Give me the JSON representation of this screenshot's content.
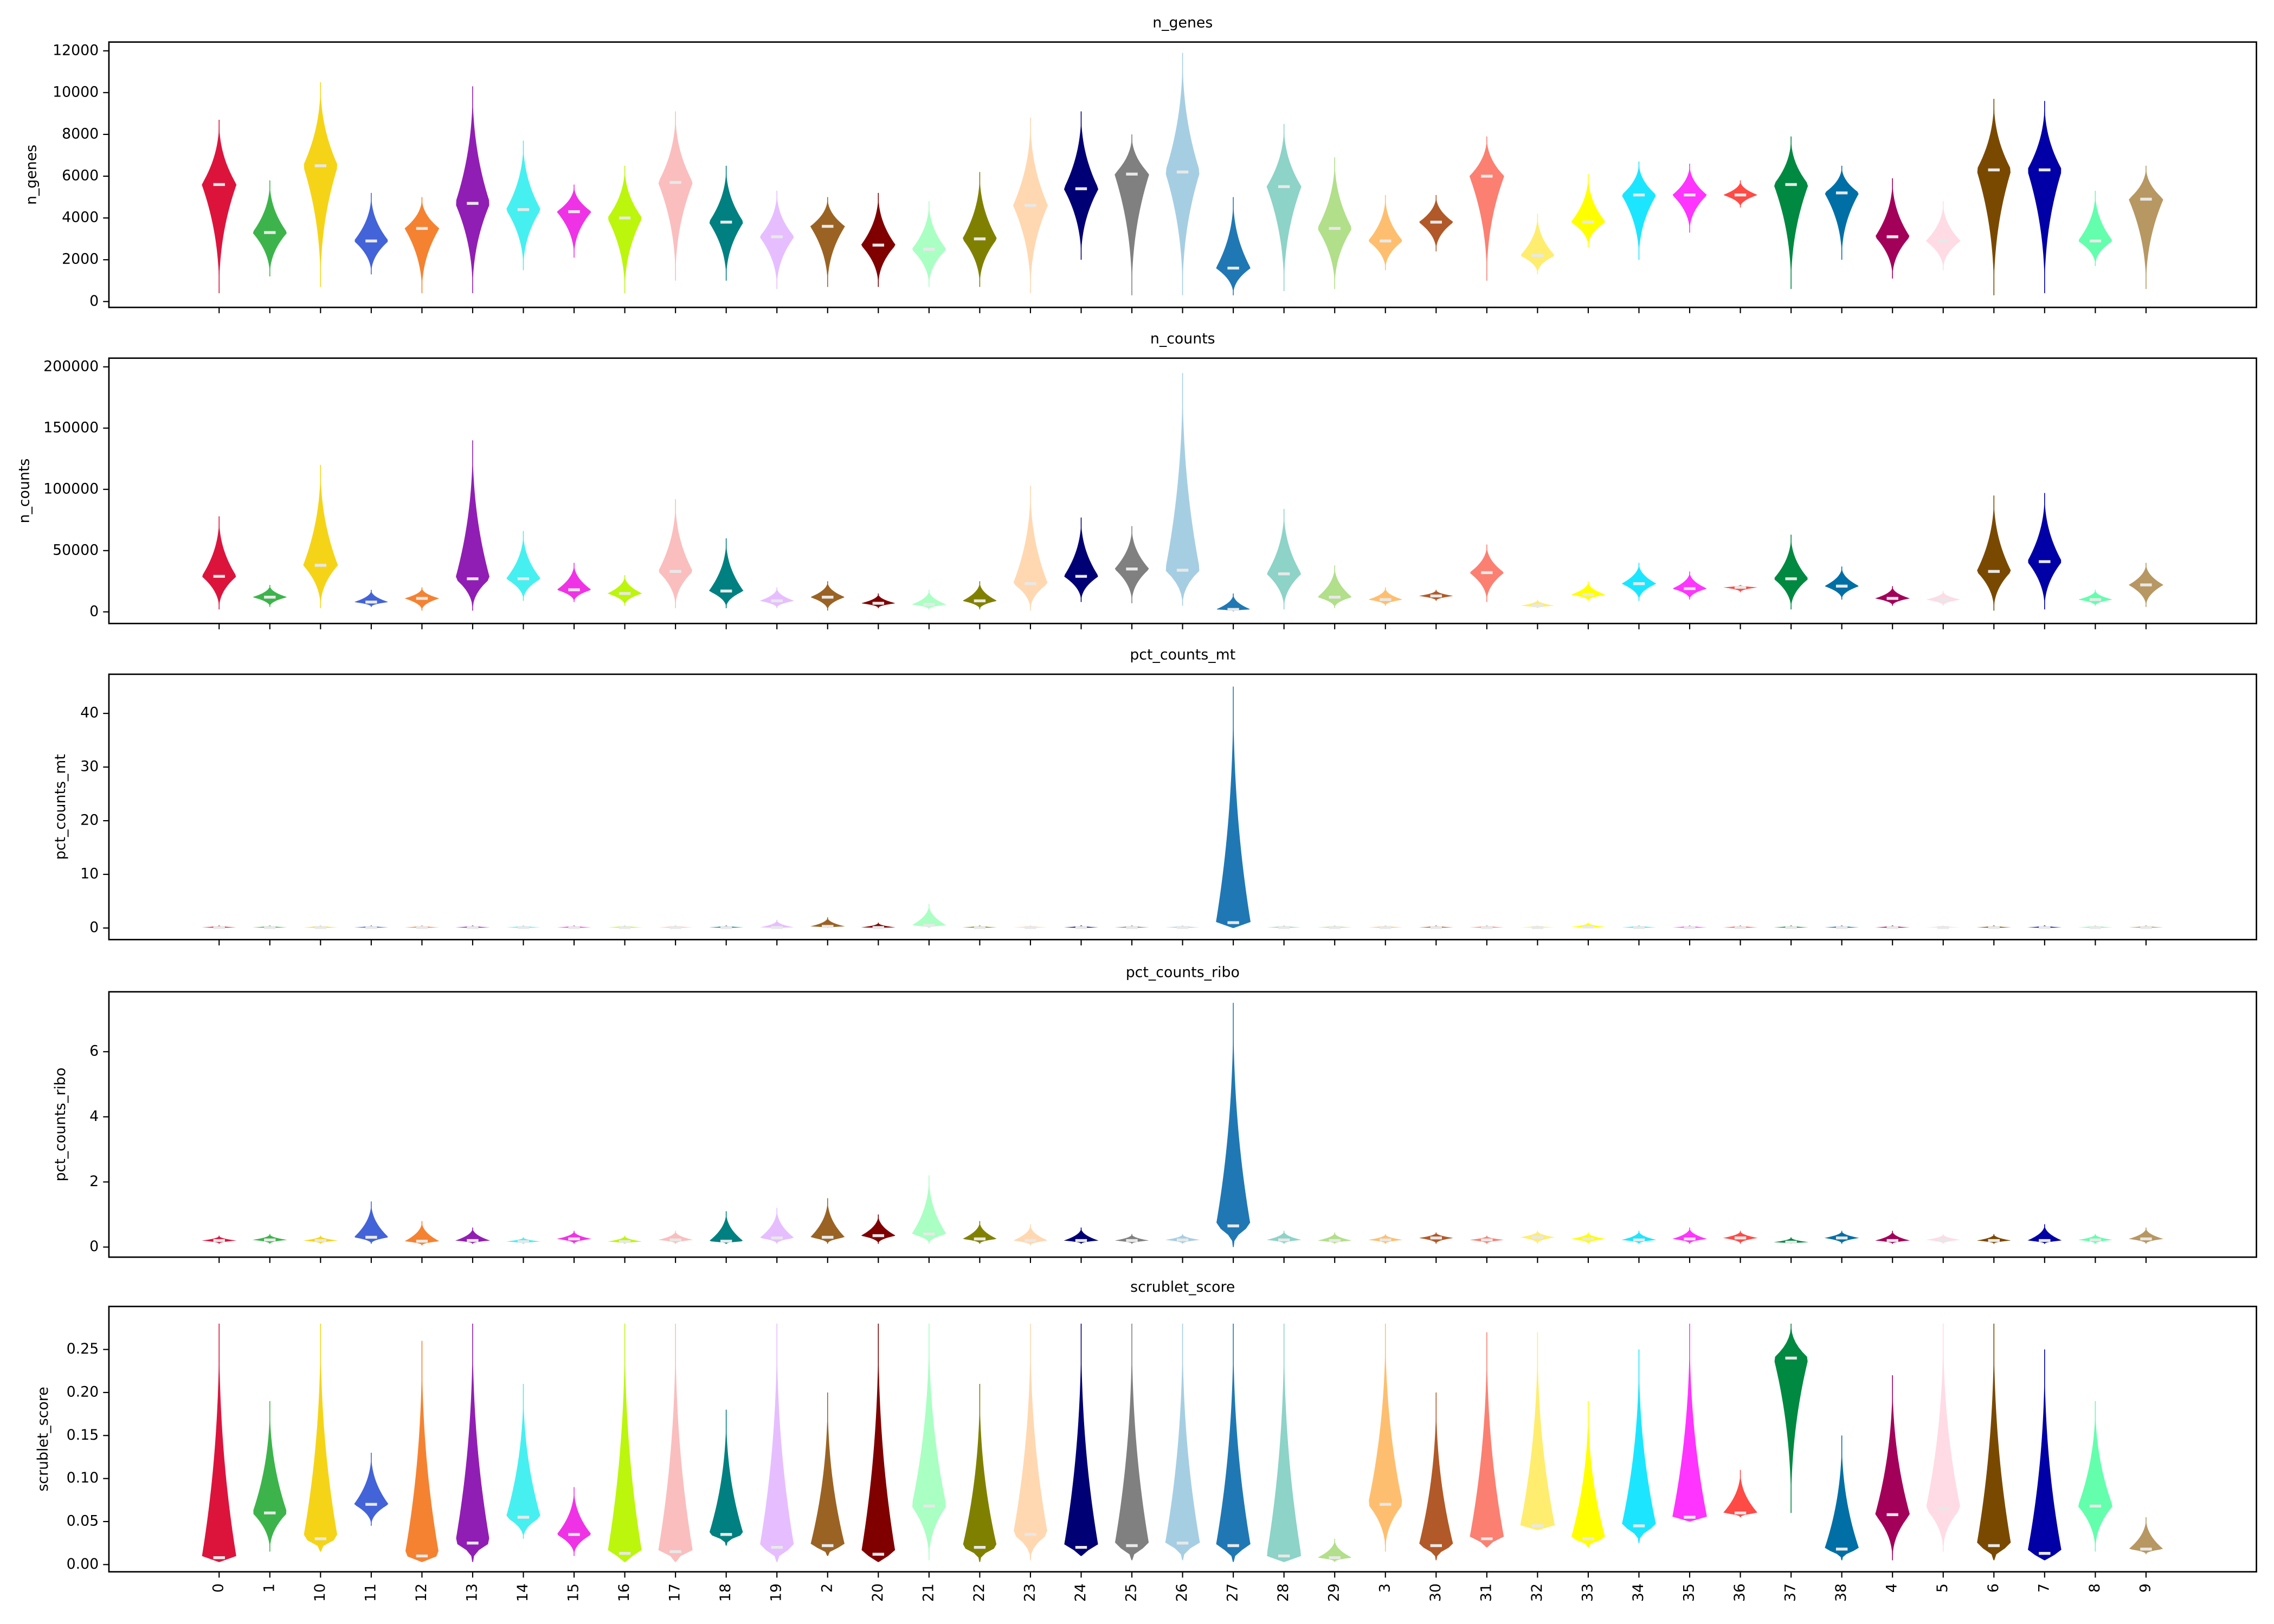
{
  "chart_data": [
    {
      "type": "violin",
      "title": "n_genes",
      "ylabel": "n_genes",
      "ylim": [
        -280,
        12420
      ],
      "yticks": [
        0,
        2000,
        4000,
        6000,
        8000,
        10000,
        12000
      ],
      "min": [
        400,
        1200,
        700,
        1300,
        400,
        400,
        1500,
        2100,
        400,
        1000,
        1000,
        600,
        700,
        700,
        700,
        700,
        400,
        2000,
        300,
        300,
        300,
        500,
        600,
        1500,
        2400,
        1000,
        1300,
        2600,
        2000,
        3300,
        4500,
        600,
        2000,
        1100,
        1500,
        300,
        400,
        1700,
        600
      ],
      "median": [
        5600,
        3300,
        6500,
        2900,
        3500,
        4700,
        4400,
        4300,
        4000,
        5700,
        3800,
        3100,
        3600,
        2700,
        2500,
        3000,
        4600,
        5400,
        6100,
        6200,
        1600,
        5500,
        3500,
        2900,
        3800,
        6000,
        2200,
        3800,
        5100,
        5100,
        5100,
        5600,
        5200,
        3100,
        2900,
        6300,
        6300,
        2900,
        4900
      ],
      "max": [
        8700,
        5800,
        10500,
        5200,
        5000,
        10300,
        7700,
        5600,
        6500,
        9100,
        6500,
        5300,
        5000,
        5200,
        4800,
        6200,
        8800,
        9100,
        8000,
        11900,
        5000,
        8500,
        6900,
        5100,
        5100,
        7900,
        4200,
        6100,
        6700,
        6600,
        5800,
        7900,
        6500,
        5900,
        4800,
        9700,
        9600,
        5300,
        6500
      ]
    },
    {
      "type": "violin",
      "title": "n_counts",
      "ylabel": "n_counts",
      "ylim": [
        -9500,
        207100
      ],
      "yticks": [
        0,
        50000,
        100000,
        150000,
        200000
      ],
      "min": [
        2000,
        4000,
        3000,
        4000,
        1000,
        1000,
        9000,
        8000,
        5000,
        3000,
        3000,
        3000,
        1000,
        3000,
        2000,
        2000,
        1000,
        8000,
        7000,
        5000,
        500,
        2000,
        3000,
        5000,
        9000,
        8000,
        3000,
        9000,
        9000,
        10000,
        16000,
        2000,
        10000,
        5000,
        5000,
        1000,
        2000,
        5000,
        4000
      ],
      "median": [
        29000,
        12000,
        38000,
        8000,
        11000,
        27000,
        27000,
        18000,
        15000,
        33000,
        17000,
        9000,
        12000,
        7000,
        6000,
        9000,
        23000,
        29000,
        35000,
        34000,
        2000,
        31000,
        12000,
        10000,
        13000,
        32000,
        5000,
        14000,
        23000,
        19000,
        20000,
        27000,
        21000,
        11000,
        10000,
        33000,
        41000,
        10000,
        22000
      ],
      "max": [
        78000,
        22000,
        120000,
        18000,
        20000,
        140000,
        66000,
        40000,
        30000,
        92000,
        60000,
        20000,
        25000,
        15000,
        18000,
        25000,
        103000,
        77000,
        70000,
        195000,
        15000,
        84000,
        38000,
        20000,
        18000,
        55000,
        10000,
        25000,
        40000,
        33000,
        22000,
        63000,
        37000,
        21000,
        17000,
        95000,
        97000,
        18000,
        40000
      ]
    },
    {
      "type": "violin",
      "title": "pct_counts_mt",
      "ylabel": "pct_counts_mt",
      "ylim": [
        -2.16,
        47.3
      ],
      "yticks": [
        0,
        10,
        20,
        30,
        40
      ],
      "min": [
        0,
        0,
        0,
        0,
        0,
        0,
        0,
        0,
        0,
        0,
        0,
        0,
        0,
        0,
        0,
        0,
        0,
        0,
        0,
        0,
        0,
        0,
        0,
        0,
        0,
        0,
        0,
        0,
        0,
        0,
        0,
        0,
        0,
        0,
        0,
        0,
        0,
        0,
        0
      ],
      "median": [
        0.1,
        0.1,
        0.1,
        0.1,
        0.1,
        0.1,
        0.1,
        0.1,
        0.1,
        0.1,
        0.1,
        0.1,
        0.3,
        0.1,
        0.5,
        0.1,
        0.1,
        0.1,
        0.1,
        0.1,
        1,
        0.1,
        0.1,
        0.1,
        0.1,
        0.1,
        0.1,
        0.2,
        0.1,
        0.1,
        0.1,
        0.1,
        0.1,
        0.1,
        0.1,
        0.1,
        0.1,
        0.1,
        0.1
      ],
      "max": [
        0.5,
        0.5,
        0.5,
        0.5,
        0.5,
        0.5,
        0.5,
        0.5,
        0.5,
        0.5,
        0.5,
        1.5,
        2,
        1,
        4.5,
        0.5,
        0.5,
        0.5,
        0.5,
        0.5,
        45,
        0.5,
        0.5,
        0.5,
        0.5,
        0.5,
        0.5,
        1,
        0.5,
        0.5,
        0.5,
        0.5,
        0.5,
        0.5,
        0.5,
        0.5,
        0.5,
        0.5,
        0.5
      ]
    },
    {
      "type": "violin",
      "title": "pct_counts_ribo",
      "ylabel": "pct_counts_ribo",
      "ylim": [
        -0.31,
        7.84
      ],
      "yticks": [
        0,
        2,
        4,
        6
      ],
      "min": [
        0.1,
        0.1,
        0.1,
        0.1,
        0.05,
        0.1,
        0.1,
        0.1,
        0.1,
        0.1,
        0.1,
        0.1,
        0.1,
        0.1,
        0.1,
        0.1,
        0.05,
        0.1,
        0.1,
        0.1,
        0,
        0.1,
        0.1,
        0.1,
        0.1,
        0.1,
        0.1,
        0.1,
        0.1,
        0.1,
        0.1,
        0.1,
        0.1,
        0.1,
        0.1,
        0.1,
        0.1,
        0.1,
        0.1
      ],
      "median": [
        0.2,
        0.22,
        0.2,
        0.3,
        0.18,
        0.2,
        0.17,
        0.25,
        0.17,
        0.22,
        0.18,
        0.28,
        0.3,
        0.35,
        0.4,
        0.25,
        0.2,
        0.2,
        0.2,
        0.22,
        0.65,
        0.22,
        0.2,
        0.22,
        0.28,
        0.22,
        0.3,
        0.25,
        0.22,
        0.25,
        0.28,
        0.15,
        0.28,
        0.2,
        0.22,
        0.2,
        0.2,
        0.22,
        0.25
      ],
      "max": [
        0.35,
        0.4,
        0.35,
        1.4,
        0.8,
        0.6,
        0.3,
        0.5,
        0.35,
        0.5,
        1.1,
        1.2,
        1.5,
        1,
        2.2,
        0.8,
        0.7,
        0.6,
        0.4,
        0.4,
        7.5,
        0.5,
        0.45,
        0.4,
        0.45,
        0.35,
        0.5,
        0.45,
        0.5,
        0.6,
        0.5,
        0.3,
        0.5,
        0.5,
        0.4,
        0.4,
        0.7,
        0.4,
        0.6
      ]
    },
    {
      "type": "violin",
      "title": "scrublet_score",
      "ylabel": "scrublet_score",
      "ylim": [
        -0.0084,
        0.3
      ],
      "yticks": [
        {
          "value": 0,
          "label": "0.00"
        },
        {
          "value": 0.05,
          "label": "0.05"
        },
        {
          "value": 0.1,
          "label": "0.10"
        },
        {
          "value": 0.15,
          "label": "0.15"
        },
        {
          "value": 0.2,
          "label": "0.20"
        },
        {
          "value": 0.25,
          "label": "0.25"
        }
      ],
      "categories": [
        "0",
        "1",
        "10",
        "11",
        "12",
        "13",
        "14",
        "15",
        "16",
        "17",
        "18",
        "19",
        "2",
        "20",
        "21",
        "22",
        "23",
        "24",
        "25",
        "26",
        "27",
        "28",
        "29",
        "3",
        "30",
        "31",
        "32",
        "33",
        "34",
        "35",
        "36",
        "37",
        "38",
        "4",
        "5",
        "6",
        "7",
        "8",
        "9"
      ],
      "colors": [
        "#dc143c",
        "#3cb44b",
        "#f5d418",
        "#4363d8",
        "#f58231",
        "#911eb4",
        "#46f0f0",
        "#f032e6",
        "#bcf60c",
        "#fabebe",
        "#008080",
        "#e6beff",
        "#9a6324",
        "#800000",
        "#aaffc3",
        "#808000",
        "#ffd8b1",
        "#000075",
        "#808080",
        "#a6cee3",
        "#1f78b4",
        "#8dd3c7",
        "#b2df8a",
        "#fdbf6f",
        "#b15928",
        "#fb8072",
        "#ffed6f",
        "#ffff00",
        "#1ce6ff",
        "#ff34ff",
        "#ff4a46",
        "#008941",
        "#006fa6",
        "#a30059",
        "#ffdbe5",
        "#7a4900",
        "#0000a6",
        "#63ffac",
        "#b79762"
      ],
      "min": [
        0.003,
        0.015,
        0.015,
        0.045,
        0.003,
        0.003,
        0.03,
        0.01,
        0.003,
        0.003,
        0.022,
        0.003,
        0.01,
        0.003,
        0.005,
        0.003,
        0.005,
        0.01,
        0.005,
        0.005,
        0.003,
        0.003,
        0.003,
        0.015,
        0.005,
        0.02,
        0.04,
        0.02,
        0.025,
        0.05,
        0.055,
        0.06,
        0.005,
        0.005,
        0.015,
        0.005,
        0.005,
        0.015,
        0.012
      ],
      "median": [
        0.008,
        0.06,
        0.03,
        0.07,
        0.01,
        0.025,
        0.055,
        0.035,
        0.013,
        0.015,
        0.035,
        0.02,
        0.022,
        0.012,
        0.068,
        0.02,
        0.035,
        0.02,
        0.022,
        0.025,
        0.022,
        0.01,
        0.008,
        0.07,
        0.022,
        0.03,
        0.045,
        0.03,
        0.045,
        0.055,
        0.06,
        0.24,
        0.018,
        0.058,
        0.065,
        0.022,
        0.013,
        0.068,
        0.018
      ],
      "max": [
        0.28,
        0.19,
        0.28,
        0.13,
        0.26,
        0.28,
        0.21,
        0.09,
        0.28,
        0.28,
        0.18,
        0.28,
        0.2,
        0.28,
        0.28,
        0.21,
        0.28,
        0.28,
        0.28,
        0.28,
        0.28,
        0.28,
        0.03,
        0.28,
        0.2,
        0.27,
        0.27,
        0.19,
        0.25,
        0.28,
        0.11,
        0.28,
        0.15,
        0.22,
        0.28,
        0.28,
        0.25,
        0.19,
        0.055
      ]
    }
  ]
}
